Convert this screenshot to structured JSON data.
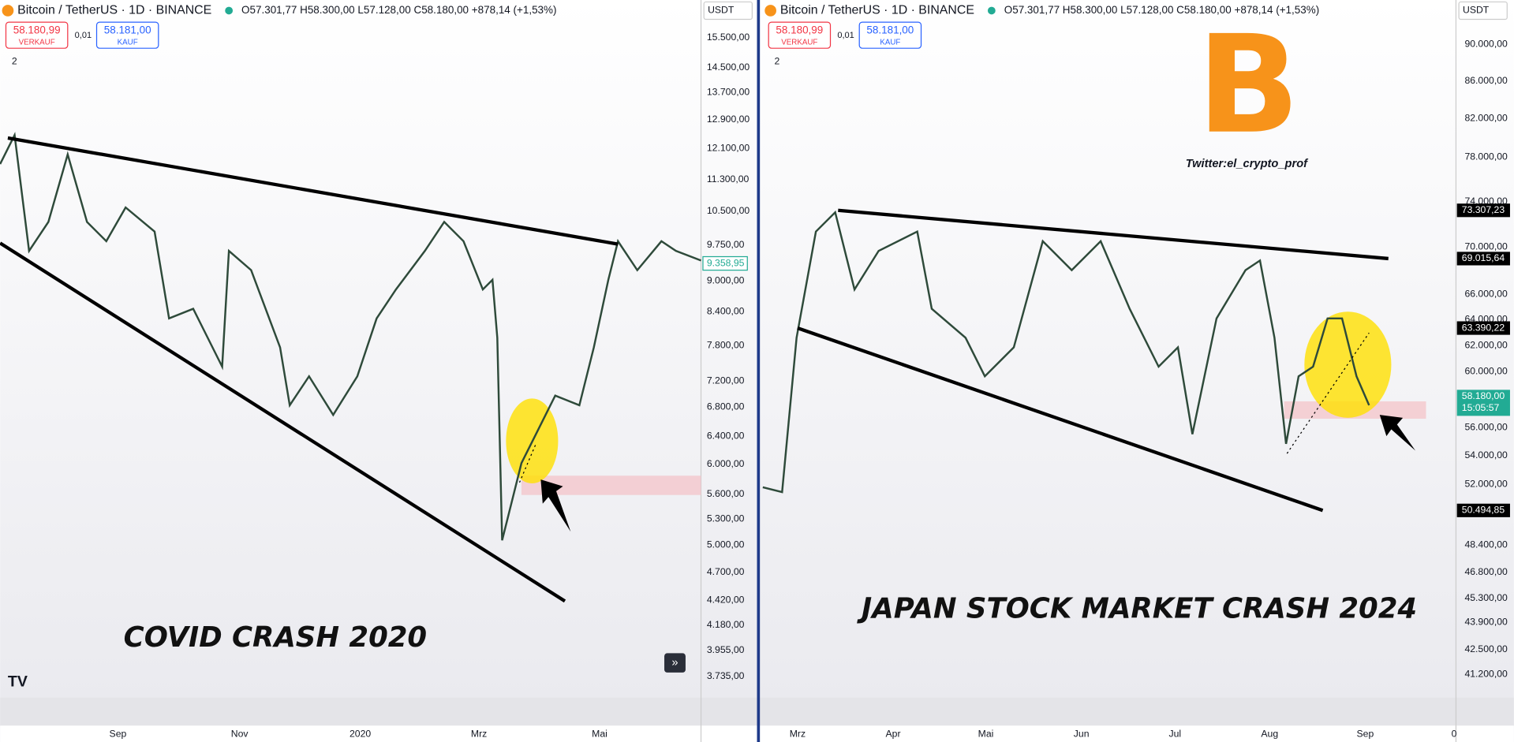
{
  "left": {
    "header": {
      "pair": "Bitcoin / TetherUS · 1D · BINANCE",
      "ohlc": "O57.301,77 H58.300,00 L57.128,00 C58.180,00 +878,14 (+1,53%)"
    },
    "sell": {
      "price": "58.180,99",
      "label": "VERKAUF"
    },
    "spread": "0,01",
    "buy": {
      "price": "58.181,00",
      "label": "KAUF"
    },
    "indicators": "2",
    "currency": "USDT",
    "price_axis": [
      "15.500,00",
      "14.500,00",
      "13.700,00",
      "12.900,00",
      "12.100,00",
      "11.300,00",
      "10.500,00",
      "9.750,00",
      "9.000,00",
      "8.400,00",
      "7.800,00",
      "7.200,00",
      "6.800,00",
      "6.400,00",
      "6.000,00",
      "5.600,00",
      "5.300,00",
      "5.000,00",
      "4.700,00",
      "4.420,00",
      "4.180,00",
      "3.955,00",
      "3.735,00"
    ],
    "current_price": "9.358,95",
    "time_axis": [
      "Sep",
      "Nov",
      "2020",
      "Mrz",
      "Mai"
    ],
    "caption": "COVID CRASH 2020"
  },
  "right": {
    "header": {
      "pair": "Bitcoin / TetherUS · 1D · BINANCE",
      "ohlc": "O57.301,77 H58.300,00 L57.128,00 C58.180,00 +878,14 (+1,53%)"
    },
    "sell": {
      "price": "58.180,99",
      "label": "VERKAUF"
    },
    "spread": "0,01",
    "buy": {
      "price": "58.181,00",
      "label": "KAUF"
    },
    "indicators": "2",
    "currency": "USDT",
    "price_axis": [
      "90.000,00",
      "86.000,00",
      "82.000,00",
      "78.000,00",
      "74.000,00",
      "70.000,00",
      "66.000,00",
      "64.000,00",
      "62.000,00",
      "60.000,00",
      "56.000,00",
      "54.000,00",
      "52.000,00",
      "48.400,00",
      "46.800,00",
      "45.300,00",
      "43.900,00",
      "42.500,00",
      "41.200,00"
    ],
    "badges": [
      "73.307,23",
      "69.015,64",
      "63.390,22",
      "50.494,85"
    ],
    "current_price": "58.180,00",
    "countdown": "15:05:57",
    "time_axis": [
      "Mrz",
      "Apr",
      "Mai",
      "Jun",
      "Jul",
      "Aug",
      "Sep",
      "0"
    ],
    "watermark": "Twitter:el_crypto_prof",
    "caption": "JAPAN STOCK MARKET CRASH 2024"
  }
}
